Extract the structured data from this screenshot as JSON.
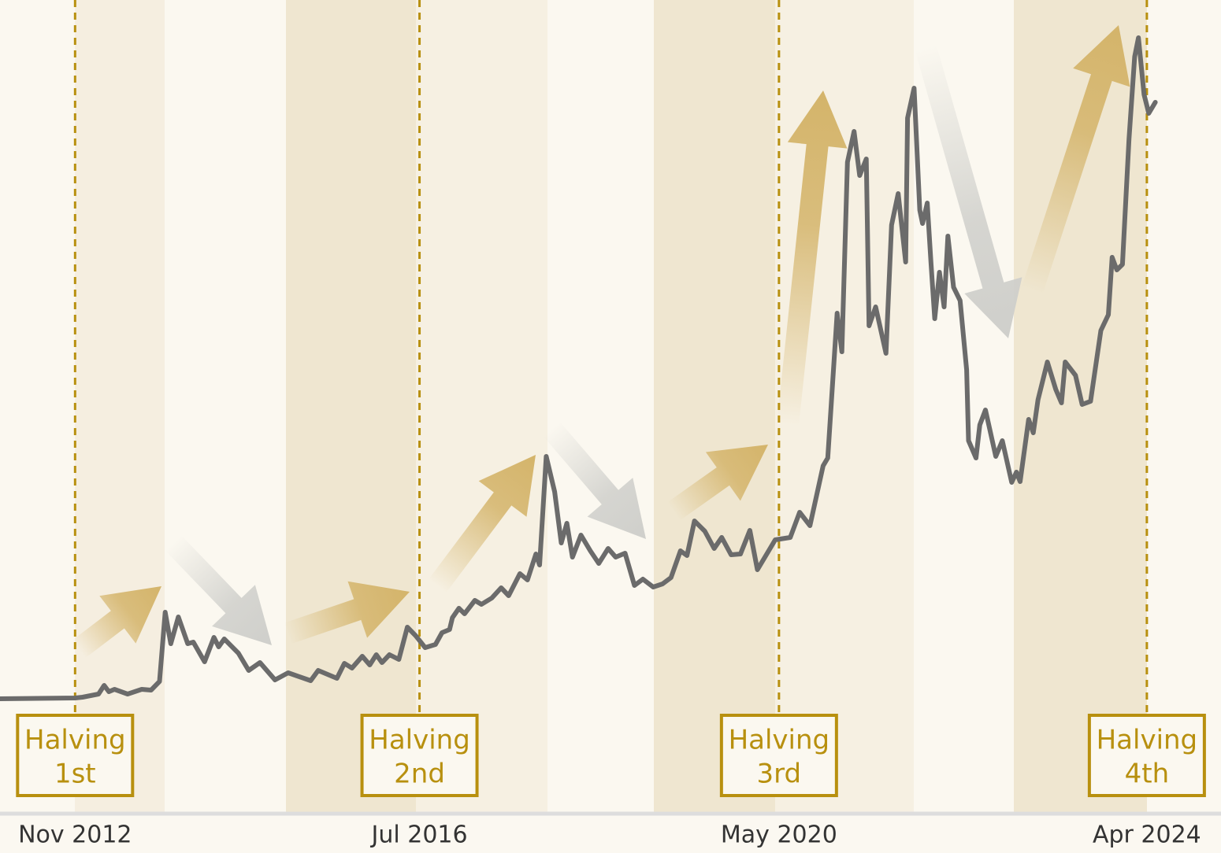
{
  "chart_data": {
    "type": "line",
    "color": "#6b6b6b",
    "xlim": [
      2012.07,
      2025.08
    ],
    "ylim": [
      0,
      103.2
    ],
    "xticks": [
      {
        "value": 2012.87,
        "label": "Nov 2012"
      },
      {
        "value": 2016.54,
        "label": "Jul 2016"
      },
      {
        "value": 2020.37,
        "label": "May 2020"
      },
      {
        "value": 2024.29,
        "label": "Apr 2024"
      }
    ],
    "annotations": [
      {
        "text": "Halving",
        "label": "1st"
      },
      {
        "text": "Halving",
        "label": "2nd"
      },
      {
        "text": "Halving",
        "label": "3rd"
      },
      {
        "text": "Halving",
        "label": "4th"
      }
    ],
    "x": [
      2012.07,
      2012.87,
      2012.95,
      2013.12,
      2013.18,
      2013.23,
      2013.29,
      2013.43,
      2013.58,
      2013.68,
      2013.77,
      2013.83,
      2013.89,
      2013.97,
      2014.07,
      2014.13,
      2014.25,
      2014.35,
      2014.4,
      2014.46,
      2014.61,
      2014.72,
      2014.84,
      2015.0,
      2015.14,
      2015.38,
      2015.46,
      2015.66,
      2015.74,
      2015.82,
      2015.93,
      2016.01,
      2016.08,
      2016.14,
      2016.22,
      2016.32,
      2016.41,
      2016.5,
      2016.6,
      2016.71,
      2016.78,
      2016.86,
      2016.89,
      2016.96,
      2017.02,
      2017.13,
      2017.2,
      2017.31,
      2017.41,
      2017.49,
      2017.61,
      2017.69,
      2017.78,
      2017.82,
      2017.89,
      2017.98,
      2018.05,
      2018.11,
      2018.17,
      2018.26,
      2018.36,
      2018.45,
      2018.55,
      2018.63,
      2018.73,
      2018.83,
      2018.92,
      2019.03,
      2019.13,
      2019.22,
      2019.32,
      2019.39,
      2019.47,
      2019.58,
      2019.68,
      2019.76,
      2019.86,
      2019.96,
      2020.06,
      2020.14,
      2020.25,
      2020.33,
      2020.49,
      2020.59,
      2020.7,
      2020.84,
      2020.89,
      2020.99,
      2021.04,
      2021.1,
      2021.17,
      2021.23,
      2021.3,
      2021.33,
      2021.4,
      2021.51,
      2021.57,
      2021.64,
      2021.72,
      2021.74,
      2021.81,
      2021.87,
      2021.9,
      2021.95,
      2021.99,
      2022.03,
      2022.08,
      2022.13,
      2022.17,
      2022.23,
      2022.3,
      2022.37,
      2022.39,
      2022.47,
      2022.51,
      2022.57,
      2022.68,
      2022.75,
      2022.85,
      2022.9,
      2022.94,
      2023.03,
      2023.08,
      2023.13,
      2023.23,
      2023.32,
      2023.38,
      2023.42,
      2023.53,
      2023.6,
      2023.69,
      2023.8,
      2023.88,
      2023.92,
      2023.97,
      2024.03,
      2024.1,
      2024.16,
      2024.2,
      2024.26,
      2024.31,
      2024.38
    ],
    "values": [
      14.4,
      14.5,
      14.6,
      15.0,
      16.1,
      15.3,
      15.6,
      15.0,
      15.6,
      15.5,
      16.6,
      25.4,
      21.4,
      24.8,
      21.4,
      21.6,
      19.1,
      22.2,
      21.0,
      22.0,
      20.2,
      18.0,
      19.0,
      16.8,
      17.7,
      16.7,
      18.0,
      17.0,
      18.9,
      18.3,
      19.8,
      18.7,
      20.0,
      19.0,
      20.0,
      19.4,
      23.5,
      22.4,
      20.9,
      21.3,
      22.8,
      23.2,
      24.7,
      25.9,
      25.2,
      26.9,
      26.4,
      27.2,
      28.5,
      27.5,
      30.3,
      29.5,
      32.8,
      31.4,
      45.2,
      40.7,
      34.2,
      36.7,
      32.4,
      35.2,
      33.2,
      31.6,
      33.5,
      32.4,
      32.9,
      28.8,
      29.6,
      28.6,
      29.0,
      29.8,
      33.2,
      32.6,
      37.0,
      35.7,
      33.5,
      34.9,
      32.7,
      32.8,
      35.8,
      30.8,
      33.0,
      34.6,
      34.9,
      38.1,
      36.4,
      44.0,
      45.0,
      63.4,
      58.5,
      82.6,
      86.5,
      80.9,
      83.0,
      61.8,
      64.2,
      58.3,
      74.6,
      78.6,
      69.9,
      88.2,
      92.0,
      76.5,
      74.8,
      77.4,
      69.7,
      62.7,
      68.6,
      64.2,
      73.2,
      66.7,
      65.0,
      56.2,
      47.2,
      45.0,
      49.2,
      51.1,
      45.2,
      47.2,
      41.9,
      43.2,
      42.0,
      49.9,
      48.2,
      52.4,
      57.2,
      53.7,
      52.0,
      57.2,
      55.5,
      51.8,
      52.2,
      61.2,
      63.2,
      70.5,
      68.9,
      69.6,
      85.5,
      96.0,
      98.4,
      91.2,
      88.8,
      90.2
    ]
  }
}
